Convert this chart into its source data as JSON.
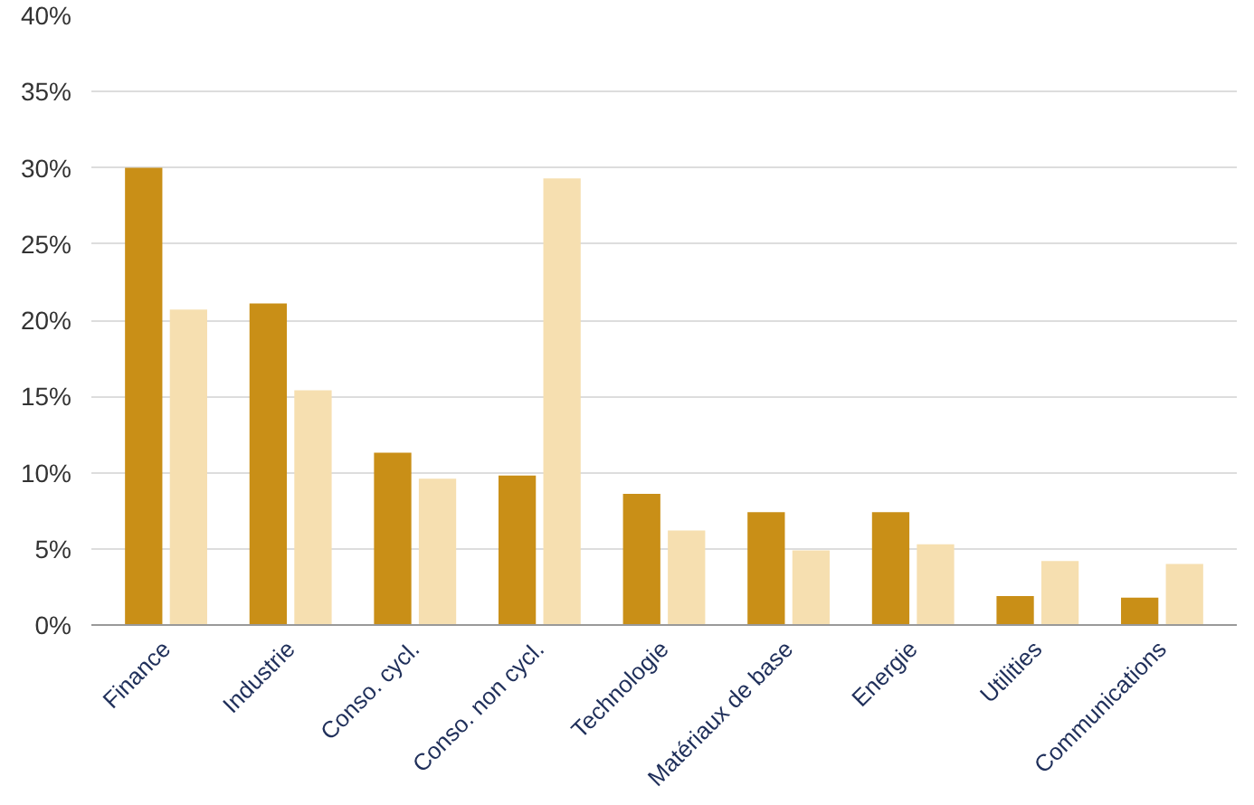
{
  "chart_data": {
    "type": "bar",
    "categories": [
      "Finance",
      "Industrie",
      "Conso. cycl.",
      "Conso. non cycl.",
      "Technologie",
      "Matériaux de base",
      "Energie",
      "Utilities",
      "Communications"
    ],
    "series": [
      {
        "color": "#c98f17",
        "values": [
          30.0,
          21.1,
          11.3,
          9.8,
          8.6,
          7.4,
          7.4,
          1.9,
          1.8
        ]
      },
      {
        "color": "#f6dfb0",
        "values": [
          20.7,
          15.4,
          9.6,
          29.3,
          6.2,
          4.9,
          5.3,
          4.2,
          4.0
        ]
      }
    ],
    "ylim": [
      0,
      40
    ],
    "yticks": [
      {
        "value": 0,
        "label": "0%"
      },
      {
        "value": 5,
        "label": "5%"
      },
      {
        "value": 10,
        "label": "10%"
      },
      {
        "value": 15,
        "label": "15%"
      },
      {
        "value": 20,
        "label": "20%"
      },
      {
        "value": 25,
        "label": "25%"
      },
      {
        "value": 30,
        "label": "30%"
      },
      {
        "value": 35,
        "label": "35%"
      },
      {
        "value": 40,
        "label": "40%"
      }
    ],
    "grid": "y"
  }
}
